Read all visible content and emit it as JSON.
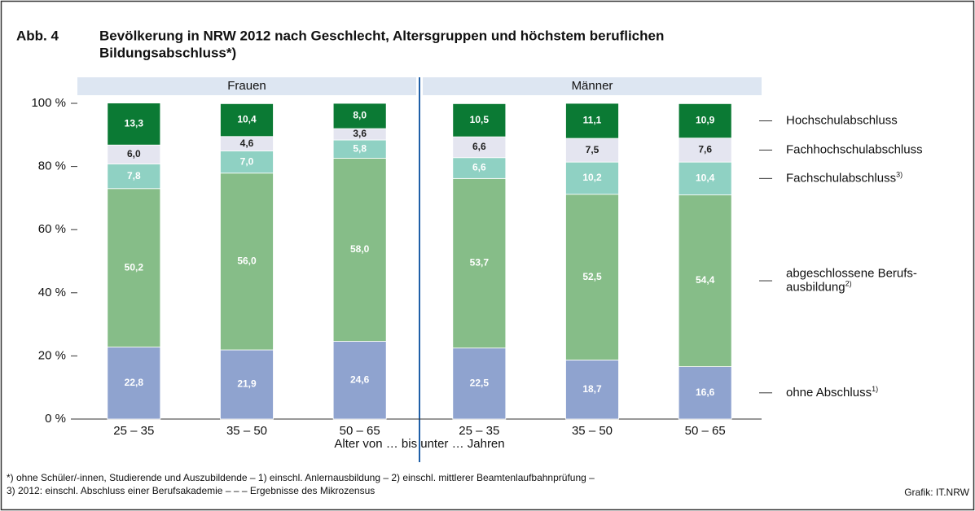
{
  "chart_data": {
    "type": "stacked_bar",
    "figure_label": "Abb. 4",
    "title_lines": [
      "Bevölkerung in NRW 2012 nach Geschlecht, Altersgruppen und höchstem beruflichen",
      "Bildungsabschluss*)"
    ],
    "groups": [
      "Frauen",
      "Männer"
    ],
    "categories": [
      "25 – 35",
      "35 – 50",
      "50 – 65",
      "25 – 35",
      "35 – 50",
      "50 – 65"
    ],
    "xlabel": "Alter von … bis unter … Jahren",
    "ylim": [
      0,
      100
    ],
    "yticks": [
      {
        "value": 0,
        "label": "0 %"
      },
      {
        "value": 20,
        "label": "20 %"
      },
      {
        "value": 40,
        "label": "40 %"
      },
      {
        "value": 60,
        "label": "60 %"
      },
      {
        "value": 80,
        "label": "80 %"
      },
      {
        "value": 100,
        "label": "100 %"
      }
    ],
    "series": [
      {
        "name": [
          "ohne Abschluss"
        ],
        "footnote": "1)",
        "color": "#8fa3cf",
        "label_color": "#ffffff",
        "values": [
          22.8,
          21.9,
          24.6,
          22.5,
          18.7,
          16.6
        ],
        "value_labels": [
          "22,8",
          "21,9",
          "24,6",
          "22,5",
          "18,7",
          "16,6"
        ]
      },
      {
        "name": [
          "abgeschlossene Berufs-",
          "ausbildung"
        ],
        "footnote": "2)",
        "color": "#86bd88",
        "label_color": "#ffffff",
        "values": [
          50.2,
          56.0,
          58.0,
          53.7,
          52.5,
          54.4
        ],
        "value_labels": [
          "50,2",
          "56,0",
          "58,0",
          "53,7",
          "52,5",
          "54,4"
        ]
      },
      {
        "name": [
          "Fachschulabschluss"
        ],
        "footnote": "3)",
        "color": "#8fd1c3",
        "label_color": "#ffffff",
        "values": [
          7.8,
          7.0,
          5.8,
          6.6,
          10.2,
          10.4
        ],
        "value_labels": [
          "7,8",
          "7,0",
          "5,8",
          "6,6",
          "10,2",
          "10,4"
        ]
      },
      {
        "name": [
          "Fachhochschulabschluss"
        ],
        "color": "#e4e5f0",
        "label_color": "#222222",
        "values": [
          6.0,
          4.6,
          3.6,
          6.6,
          7.5,
          7.6
        ],
        "value_labels": [
          "6,0",
          "4,6",
          "3,6",
          "6,6",
          "7,5",
          "7,6"
        ]
      },
      {
        "name": [
          "Hochschulabschluss"
        ],
        "color": "#0b7a34",
        "label_color": "#ffffff",
        "values": [
          13.3,
          10.4,
          8.0,
          10.5,
          11.1,
          10.9
        ],
        "value_labels": [
          "13,3",
          "10,4",
          "8,0",
          "10,5",
          "11,1",
          "10,9"
        ]
      }
    ],
    "footnotes": [
      "*) ohne Schüler/-innen, Studierende und Auszubildende – 1) einschl. Anlernausbildung – 2) einschl. mittlerer Beamtenlaufbahnprüfung –",
      "3) 2012: einschl. Abschluss einer Berufsakademie – – – Ergebnisse des Mikrozensus"
    ],
    "credit": "Grafik: IT.NRW"
  }
}
